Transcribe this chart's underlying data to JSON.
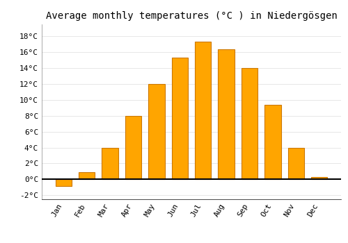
{
  "title": "Average monthly temperatures (°C ) in Niedergösgen",
  "months": [
    "Jan",
    "Feb",
    "Mar",
    "Apr",
    "May",
    "Jun",
    "Jul",
    "Aug",
    "Sep",
    "Oct",
    "Nov",
    "Dec"
  ],
  "values": [
    -0.8,
    0.9,
    4.0,
    8.0,
    12.0,
    15.3,
    17.3,
    16.4,
    14.0,
    9.4,
    4.0,
    0.3
  ],
  "bar_color": "#FFA500",
  "bar_edge_color": "#CC7700",
  "background_color": "#FFFFFF",
  "grid_color": "#DDDDDD",
  "ylim": [
    -2.5,
    19.5
  ],
  "yticks": [
    -2,
    0,
    2,
    4,
    6,
    8,
    10,
    12,
    14,
    16,
    18
  ],
  "ylabel_suffix": "°C",
  "zero_line_color": "#000000",
  "title_fontsize": 10,
  "tick_fontsize": 8,
  "font_family": "monospace"
}
